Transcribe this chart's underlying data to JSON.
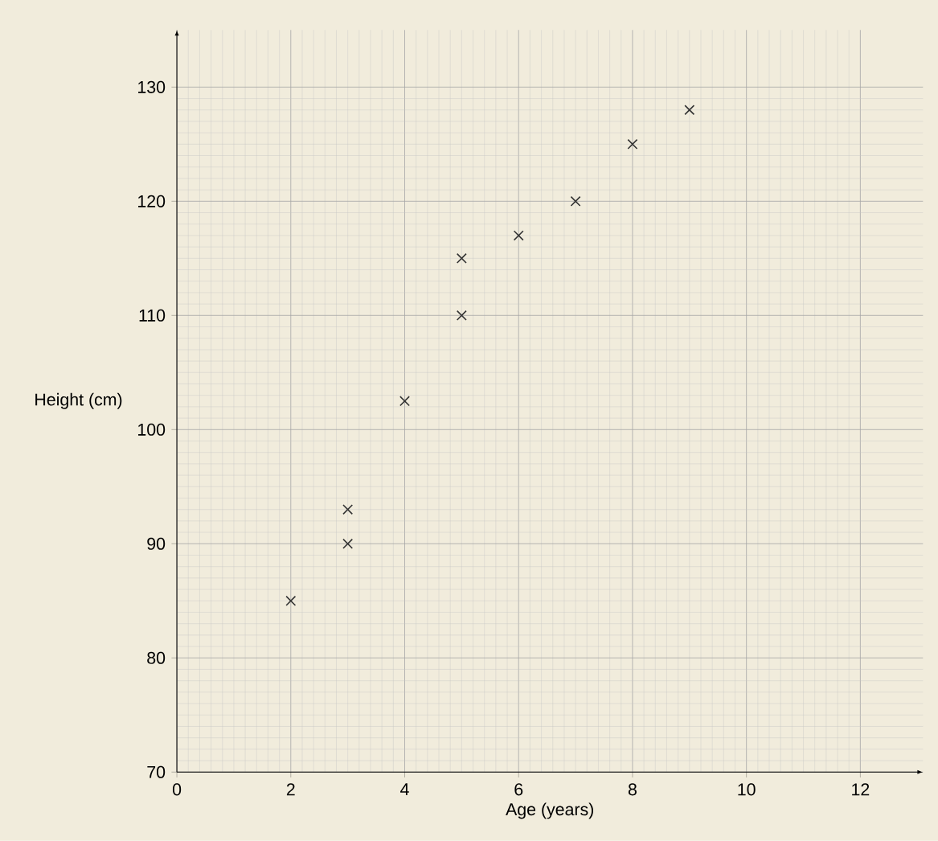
{
  "chart_data": {
    "type": "scatter",
    "xlabel": "Age (years)",
    "ylabel": "Height (cm)",
    "x": [
      2,
      3,
      3,
      4,
      5,
      5,
      6,
      7,
      8,
      9
    ],
    "values": [
      85,
      93,
      90,
      102.5,
      115,
      110,
      117,
      120,
      125,
      128
    ],
    "color": "#333333",
    "marker": "cross",
    "xlim": [
      0,
      13.1
    ],
    "ylim": [
      70,
      135
    ],
    "xticks": [
      0,
      2,
      4,
      6,
      8,
      10,
      12
    ],
    "yticks": [
      70,
      80,
      90,
      100,
      110,
      120,
      130
    ],
    "grid": true
  }
}
